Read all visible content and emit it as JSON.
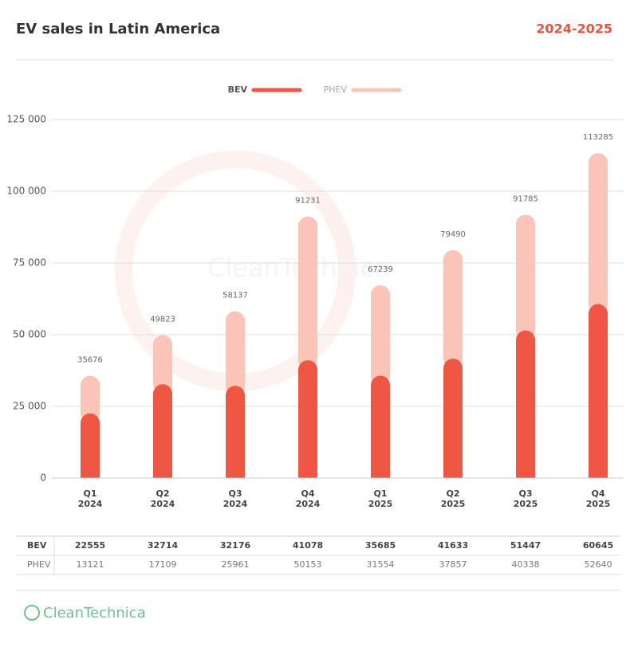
{
  "chart_data": {
    "type": "stacked_bar",
    "title": "EV sales in Latin America",
    "subtitle": "2024-2025",
    "categories": [
      [
        "Q1",
        "2024"
      ],
      [
        "Q2",
        "2024"
      ],
      [
        "Q3",
        "2024"
      ],
      [
        "Q4",
        "2024"
      ],
      [
        "Q1",
        "2025"
      ],
      [
        "Q2",
        "2025"
      ],
      [
        "Q3",
        "2025"
      ],
      [
        "Q4",
        "2025"
      ]
    ],
    "series": [
      {
        "name": "BEV",
        "color": "#ef5643",
        "values": [
          22555,
          32714,
          32176,
          41078,
          35685,
          41633,
          51447,
          60645
        ]
      },
      {
        "name": "PHEV",
        "color": "#fbc4b8",
        "values": [
          13121,
          17109,
          25961,
          50153,
          31554,
          37857,
          40338,
          52640
        ]
      }
    ],
    "totals": [
      35676,
      49823,
      58137,
      91231,
      67239,
      79490,
      91785,
      113285
    ],
    "ylim": [
      0,
      125000
    ],
    "yticks": [
      0,
      {
        "value": 25000,
        "label": "25 000"
      },
      {
        "value": 50000,
        "label": "50 000"
      },
      {
        "value": 75000,
        "label": "75 000"
      },
      {
        "value": 100000,
        "label": "100 000"
      },
      {
        "value": 125000,
        "label": "125 000"
      }
    ],
    "grid": true,
    "legend": "top",
    "source": "CleanTechnica"
  }
}
